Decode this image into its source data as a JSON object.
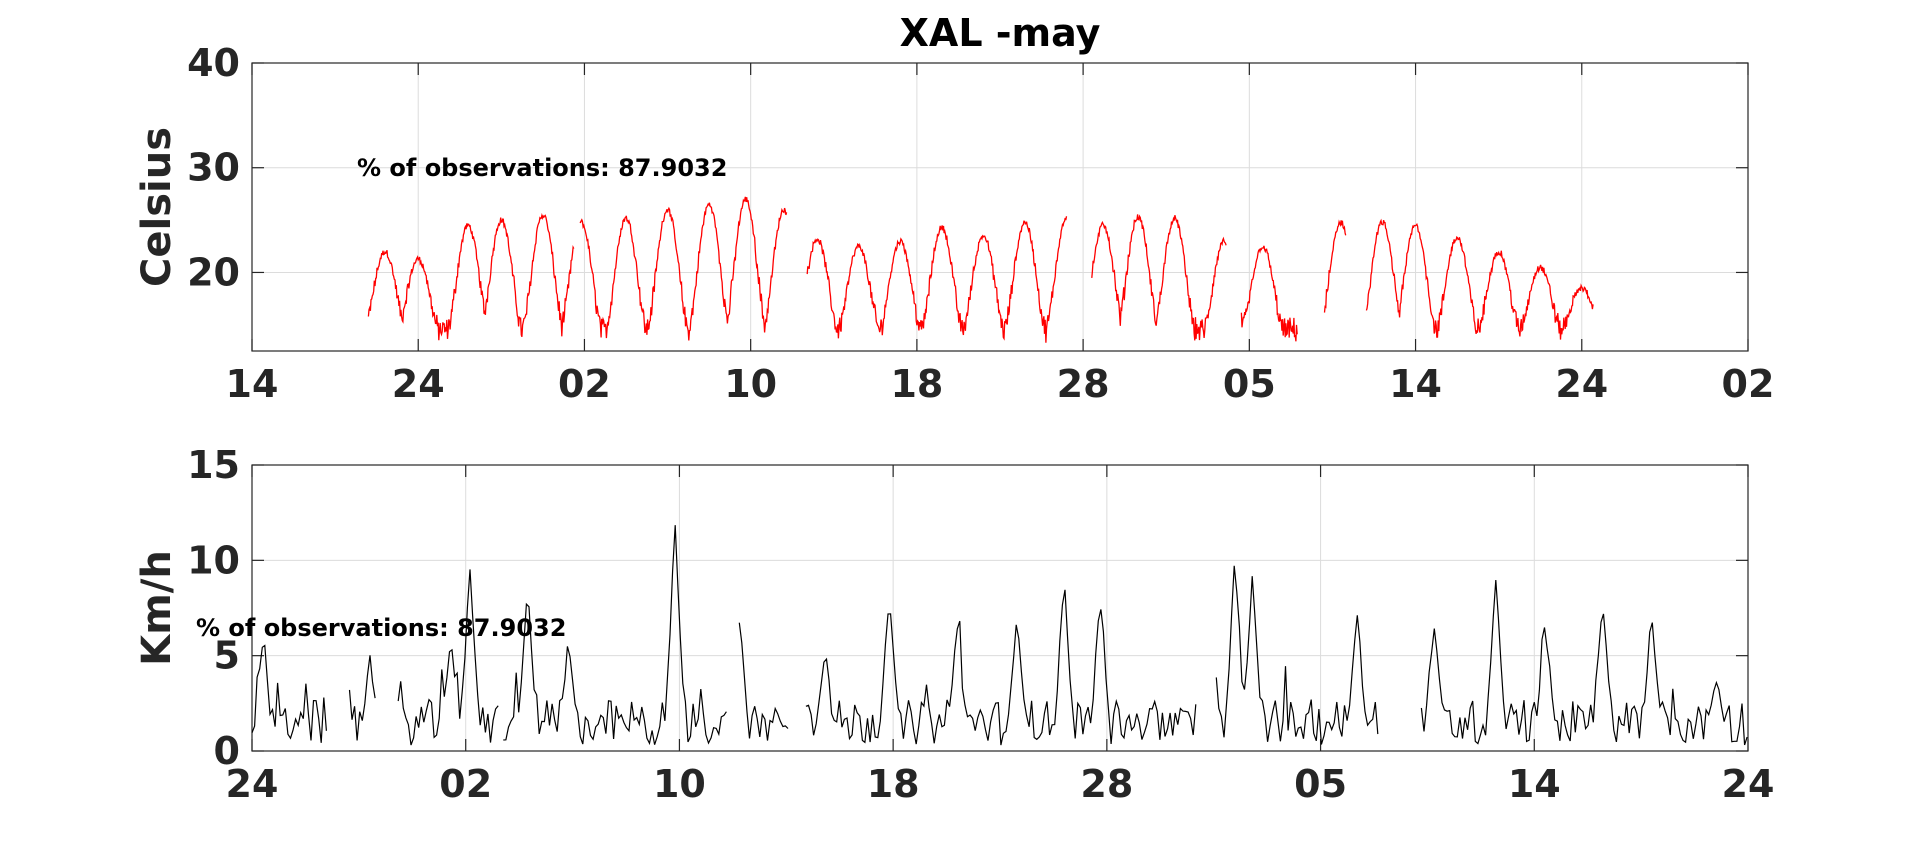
{
  "chart_data": [
    {
      "type": "line",
      "title": "XAL -may",
      "ylabel": "Celsius",
      "xlabel": "",
      "annotation": "% of observations: 87.9032",
      "ylim": [
        12.5,
        40
      ],
      "xlim": [
        0,
        9
      ],
      "x_ticks": [
        0,
        1,
        2,
        3,
        4,
        5,
        6,
        7,
        8,
        9
      ],
      "x_tick_labels": [
        "14",
        "24",
        "02",
        "10",
        "18",
        "28",
        "05",
        "14",
        "24",
        "02"
      ],
      "y_ticks": [
        20,
        30,
        40
      ],
      "y_tick_labels": [
        "20",
        "30",
        "40"
      ],
      "grid": true,
      "series": [
        {
          "color": "#ff0000",
          "daily_peaks": [
            [
              0.8,
              22
            ],
            [
              1.0,
              21.3
            ],
            [
              1.3,
              24.5
            ],
            [
              1.5,
              25
            ],
            [
              1.75,
              25.5
            ],
            [
              1.98,
              24.8
            ],
            [
              2.25,
              25.2
            ],
            [
              2.5,
              26
            ],
            [
              2.75,
              26.5
            ],
            [
              2.97,
              27
            ],
            [
              3.2,
              26
            ],
            [
              3.4,
              23.2
            ],
            [
              3.65,
              22.5
            ],
            [
              3.9,
              23
            ],
            [
              4.15,
              24.3
            ],
            [
              4.4,
              23.5
            ],
            [
              4.65,
              24.8
            ],
            [
              4.9,
              25.3
            ],
            [
              5.12,
              24.5
            ],
            [
              5.33,
              25.3
            ],
            [
              5.55,
              25.2
            ],
            [
              5.85,
              23
            ],
            [
              6.08,
              22.5
            ],
            [
              6.55,
              24.8
            ],
            [
              6.8,
              24.8
            ],
            [
              7.0,
              24.5
            ],
            [
              7.25,
              23.4
            ],
            [
              7.5,
              22
            ],
            [
              7.75,
              20.5
            ],
            [
              8.0,
              18.5
            ]
          ],
          "range_x": [
            0.7,
            8.07
          ],
          "min_value": 12.6
        }
      ]
    },
    {
      "type": "line",
      "title": "",
      "ylabel": "Km/h",
      "xlabel": "",
      "annotation": "% of observations: 87.9032",
      "ylim": [
        0,
        15
      ],
      "xlim": [
        0,
        7
      ],
      "x_ticks": [
        0,
        1,
        2,
        3,
        4,
        5,
        6,
        7
      ],
      "x_tick_labels": [
        "24",
        "02",
        "10",
        "18",
        "28",
        "05",
        "14",
        "24"
      ],
      "y_ticks": [
        0,
        5,
        10,
        15
      ],
      "y_tick_labels": [
        "0",
        "5",
        "10",
        "15"
      ],
      "grid": true,
      "series": [
        {
          "color": "#000000",
          "notable_peaks": [
            [
              0.05,
              5.3
            ],
            [
              0.55,
              4.4
            ],
            [
              0.93,
              5.8
            ],
            [
              1.02,
              9.2
            ],
            [
              1.29,
              7.9
            ],
            [
              1.48,
              5.2
            ],
            [
              1.98,
              11.4
            ],
            [
              2.28,
              6.5
            ],
            [
              2.68,
              5.0
            ],
            [
              2.98,
              7.8
            ],
            [
              3.3,
              6.3
            ],
            [
              3.58,
              6.7
            ],
            [
              3.8,
              8.4
            ],
            [
              3.97,
              7.7
            ],
            [
              4.47,
              5.2
            ],
            [
              4.6,
              9.8
            ],
            [
              4.68,
              8.8
            ],
            [
              5.17,
              7.0
            ],
            [
              5.53,
              6.3
            ],
            [
              5.82,
              8.6
            ],
            [
              6.05,
              6.6
            ],
            [
              6.32,
              7.5
            ],
            [
              6.55,
              6.5
            ],
            [
              6.85,
              3.7
            ]
          ],
          "range_x": [
            0,
            7
          ],
          "min_value": 0.2
        }
      ]
    }
  ]
}
